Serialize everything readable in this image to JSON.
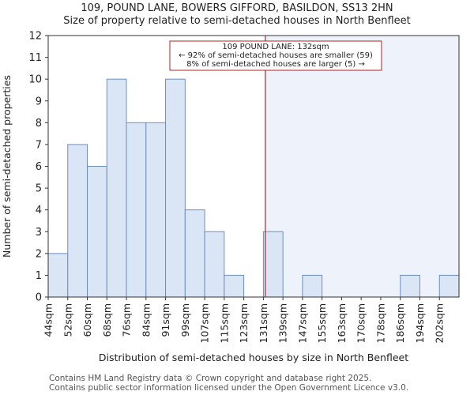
{
  "header": {
    "title_line1": "109, POUND LANE, BOWERS GIFFORD, BASILDON, SS13 2HN",
    "title_line2": "Size of property relative to semi-detached houses in North Benfleet"
  },
  "chart_data": {
    "type": "bar",
    "categories": [
      "44sqm",
      "52sqm",
      "60sqm",
      "68sqm",
      "76sqm",
      "84sqm",
      "91sqm",
      "99sqm",
      "107sqm",
      "115sqm",
      "123sqm",
      "131sqm",
      "139sqm",
      "147sqm",
      "155sqm",
      "163sqm",
      "170sqm",
      "178sqm",
      "186sqm",
      "194sqm",
      "202sqm"
    ],
    "values": [
      2,
      7,
      6,
      10,
      8,
      8,
      10,
      4,
      3,
      1,
      0,
      3,
      0,
      1,
      0,
      0,
      0,
      0,
      1,
      0,
      1
    ],
    "xlabel": "Distribution of semi-detached houses by size in North Benfleet",
    "ylabel": "Number of semi-detached properties",
    "ylim": [
      0,
      12
    ],
    "yticks": [
      0,
      1,
      2,
      3,
      4,
      5,
      6,
      7,
      8,
      9,
      10,
      11,
      12
    ],
    "marker": {
      "value_index": 11.1,
      "label": "109 POUND LANE: 132sqm",
      "line2": "← 92% of semi-detached houses are smaller (59)",
      "line3": "8% of semi-detached houses are larger (5) →"
    },
    "colors": {
      "bar_fill": "#dae6f5",
      "bar_stroke": "#6b8fc2",
      "marker": "#b22222",
      "shade": "#eef2fa"
    }
  },
  "footer": {
    "line1": "Contains HM Land Registry data © Crown copyright and database right 2025.",
    "line2": "Contains public sector information licensed under the Open Government Licence v3.0."
  }
}
